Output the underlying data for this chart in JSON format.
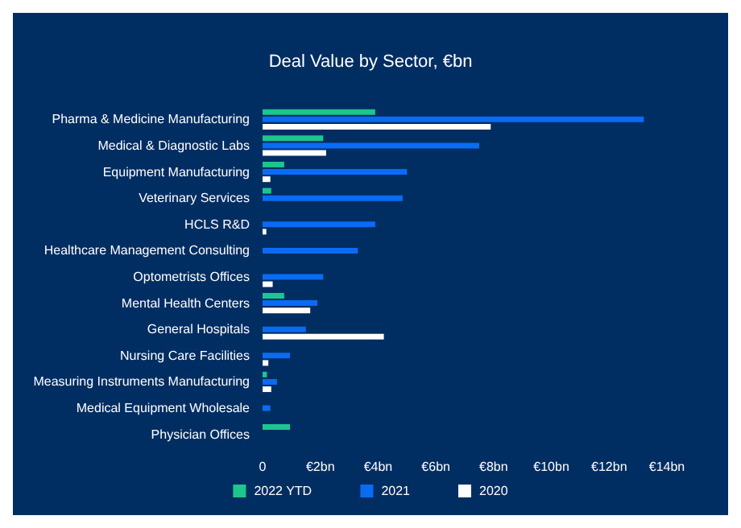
{
  "chart_data": {
    "type": "bar",
    "orientation": "horizontal",
    "title": "Deal Value by Sector, €bn",
    "categories": [
      "Pharma & Medicine Manufacturing",
      "Medical & Diagnostic Labs",
      "Equipment Manufacturing",
      "Veterinary Services",
      "HCLS R&D",
      "Healthcare Management Consulting",
      "Optometrists Offices",
      "Mental Health Centers",
      "General Hospitals",
      "Nursing Care Facilities",
      "Measuring Instruments Manufacturing",
      "Medical Equipment Wholesale",
      "Physician Offices"
    ],
    "series": [
      {
        "name": "2022 YTD",
        "color": "#1dc58f",
        "values": [
          3.9,
          2.1,
          0.75,
          0.3,
          null,
          null,
          null,
          0.75,
          null,
          null,
          0.15,
          null,
          0.95
        ]
      },
      {
        "name": "2021",
        "color": "#0a6cf2",
        "values": [
          13.2,
          7.5,
          5.0,
          4.85,
          3.9,
          3.3,
          2.1,
          1.9,
          1.5,
          0.95,
          0.5,
          0.27,
          null
        ]
      },
      {
        "name": "2020",
        "color": "#ffffff",
        "values": [
          7.9,
          2.2,
          0.27,
          null,
          0.13,
          null,
          0.35,
          1.65,
          4.2,
          0.2,
          0.3,
          null,
          null
        ]
      }
    ],
    "xlim": [
      0,
      14
    ],
    "xticks": [
      0,
      {
        "value": 2,
        "label": "€2bn"
      },
      {
        "value": 4,
        "label": "€4bn"
      },
      {
        "value": 6,
        "label": "€6bn"
      },
      {
        "value": 8,
        "label": "€8bn"
      },
      {
        "value": 10,
        "label": "€10bn"
      },
      {
        "value": 12,
        "label": "€12bn"
      },
      {
        "value": 14,
        "label": "€14bn"
      }
    ],
    "grid": false,
    "legend": "bottom"
  }
}
